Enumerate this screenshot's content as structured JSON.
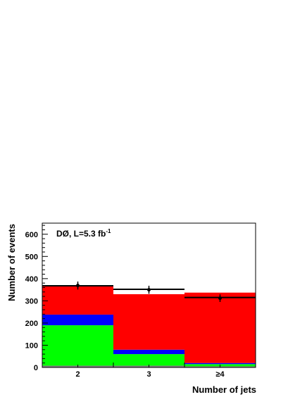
{
  "chart_data": {
    "type": "bar",
    "stacked": true,
    "categories": [
      "2",
      "3",
      "≥4"
    ],
    "annotation": {
      "text": "DØ, L=5.3 fb",
      "superscript": "-1"
    },
    "xlabel": "Number of jets",
    "ylabel": "Number of events",
    "ylim": [
      0,
      650
    ],
    "yticks": [
      0,
      100,
      200,
      300,
      400,
      500,
      600
    ],
    "series": [
      {
        "color": "#808080",
        "values": [
          8,
          8,
          5
        ]
      },
      {
        "color": "#00ff00",
        "values": [
          182,
          52,
          10
        ]
      },
      {
        "color": "#0000ff",
        "values": [
          48,
          20,
          5
        ]
      },
      {
        "color": "#ff0000",
        "values": [
          128,
          250,
          317
        ]
      }
    ],
    "model_line": {
      "color": "#000000",
      "values": [
        368,
        352,
        315
      ]
    },
    "data_points": {
      "values": [
        369,
        350,
        312
      ],
      "errors": [
        18,
        18,
        17
      ]
    },
    "grid": false,
    "legend": "none"
  }
}
